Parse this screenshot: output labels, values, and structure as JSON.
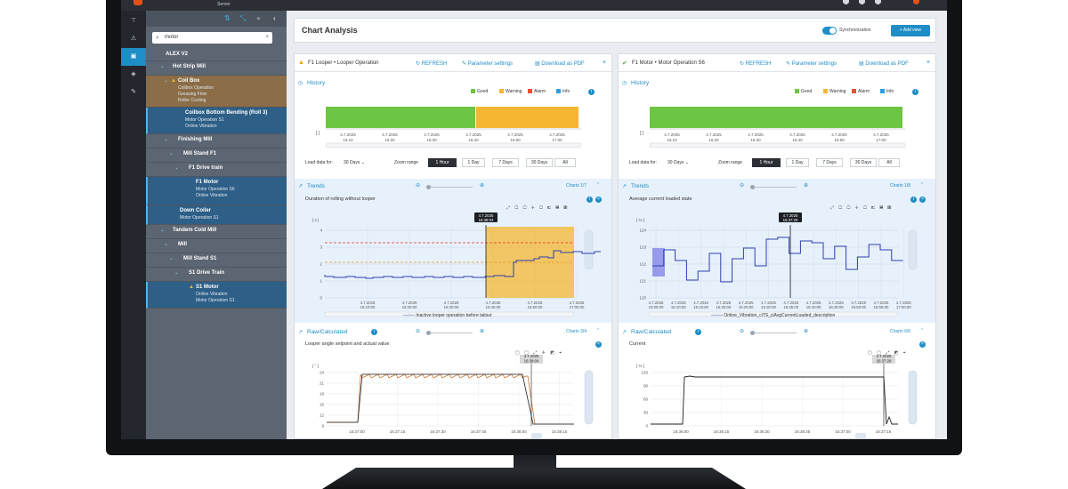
{
  "app": {
    "server_label": "Server"
  },
  "tree": {
    "search_value": "motor",
    "nodes": [
      {
        "label": "ALEX V2",
        "subs": []
      },
      {
        "label": "Hot Strip Mill",
        "subs": []
      },
      {
        "label": "Coil Box",
        "subs": [
          "Coilbox Operation",
          "Greasing Flow",
          "Roller Cooling"
        ]
      },
      {
        "label": "Coilbox Bottom Bending (Roll 3)",
        "subs": [
          "Motor Operation S1",
          "Online Vibration"
        ]
      },
      {
        "label": "Finishing Mill",
        "subs": []
      },
      {
        "label": "Mill Stand F1",
        "subs": []
      },
      {
        "label": "F1 Drive train",
        "subs": []
      },
      {
        "label": "F1 Motor",
        "subs": [
          "Motor Operation S6",
          "Online Vibration"
        ]
      },
      {
        "label": "Down Coiler",
        "subs": [
          "Motor Operation S1"
        ]
      },
      {
        "label": "Tandem Cold Mill",
        "subs": []
      },
      {
        "label": "Mill",
        "subs": []
      },
      {
        "label": "Mill Stand S1",
        "subs": []
      },
      {
        "label": "S1 Drive Train",
        "subs": []
      },
      {
        "label": "S1 Motor",
        "subs": [
          "Online Vibration",
          "Motor Operation S1"
        ]
      }
    ]
  },
  "header": {
    "title": "Chart Analysis",
    "sync_label": "Synchronization",
    "add_view": "+ Add view"
  },
  "common": {
    "refresh": "REFRESH",
    "parameter_settings": "Parameter settings",
    "download_pdf": "Download as PDF",
    "history": "History",
    "trends": "Trends",
    "raw": "Raw/Calculated",
    "legend": [
      "Good",
      "Warning",
      "Alarm",
      "Info"
    ],
    "legend_colors": [
      "#6cc644",
      "#f5b731",
      "#e8502f",
      "#2b9fe0"
    ],
    "load_data_for": "Load data for:",
    "load_days": "30 Days",
    "zoom_range": "Zoom range",
    "zoom_options": [
      "1 Hour",
      "1 Day",
      "7 Days",
      "30 Days",
      "All"
    ],
    "history_x_ticks": [
      [
        "4.7.2025",
        "16:10"
      ],
      [
        "4.7.2025",
        "16:20"
      ],
      [
        "4.7.2025",
        "16:30"
      ],
      [
        "4.7.2025",
        "16:40"
      ],
      [
        "4.7.2025",
        "16:50"
      ],
      [
        "4.7.2025",
        "17:00"
      ]
    ],
    "history_y_label": "[ ]"
  },
  "panels": [
    {
      "name": "F1 Looper",
      "sub": "Looper Operation",
      "status": "warning",
      "trend": {
        "charts": "Charts 1/7",
        "chart_title": "Duration of rolling without looper",
        "unit": "[ s ]",
        "cursor_label": [
          "4.7.2025",
          "16:38:04"
        ],
        "legend": "Inactive looper operation before tailout",
        "x_ticks": [
          [
            "4.7.2025",
            "16:10:00"
          ],
          [
            "4.7.2025",
            "16:20:00"
          ],
          [
            "4.7.2025",
            "16:30:00"
          ],
          [
            "4.7.2025",
            "16:40:00"
          ],
          [
            "4.7.2025",
            "16:50:00"
          ],
          [
            "4.7.2025",
            "17:00:00"
          ]
        ],
        "y_ticks": [
          "4",
          "3",
          "2",
          "1",
          "0"
        ]
      },
      "raw": {
        "charts": "Charts 3/4",
        "chart_title": "Looper angle setpoint and actual value",
        "unit": "[ ° ]",
        "cursor_label": [
          "4.7.2025",
          "16:38:04"
        ],
        "x_ticks": [
          "16:37:00",
          "16:37:15",
          "16:37:30",
          "16:37:45",
          "16:38:00",
          "16:38:15"
        ],
        "y_ticks": [
          "24",
          "21",
          "18",
          "15",
          "12",
          "9"
        ]
      }
    },
    {
      "name": "F1 Motor",
      "sub": "Motor Operation S6",
      "status": "good",
      "trend": {
        "charts": "Charts 1/8",
        "chart_title": "Average current loaded state",
        "unit": "[ % ]",
        "cursor_label": [
          "4.7.2025",
          "16:37:29"
        ],
        "legend": "Online_Vibration_ciTS_ciAvgCurrentLoaded_description",
        "x_ticks": [
          [
            "4.7.2025",
            "16:05:00"
          ],
          [
            "4.7.2025",
            "16:10:00"
          ],
          [
            "4.7.2025",
            "16:15:00"
          ],
          [
            "4.7.2025",
            "16:20:00"
          ],
          [
            "4.7.2025",
            "16:25:00"
          ],
          [
            "4.7.2025",
            "16:30:00"
          ],
          [
            "4.7.2025",
            "16:35:00"
          ],
          [
            "4.7.2025",
            "16:40:00"
          ],
          [
            "4.7.2025",
            "16:45:00"
          ],
          [
            "4.7.2025",
            "16:50:00"
          ],
          [
            "4.7.2025",
            "16:55:00"
          ],
          [
            "4.7.2025",
            "17:00:00"
          ]
        ],
        "y_ticks": [
          "124",
          "123",
          "122",
          "121",
          "120"
        ]
      },
      "raw": {
        "charts": "Charts 6/6",
        "chart_title": "Current",
        "unit": "[ % ]",
        "cursor_label": [
          "4.7.2025",
          "16:37:29"
        ],
        "x_ticks": [
          "16:36:00",
          "16:36:15",
          "16:36:30",
          "16:36:45",
          "16:37:00",
          "16:37:15"
        ],
        "y_ticks": [
          "120",
          "90",
          "60",
          "30",
          "0"
        ]
      }
    }
  ]
}
